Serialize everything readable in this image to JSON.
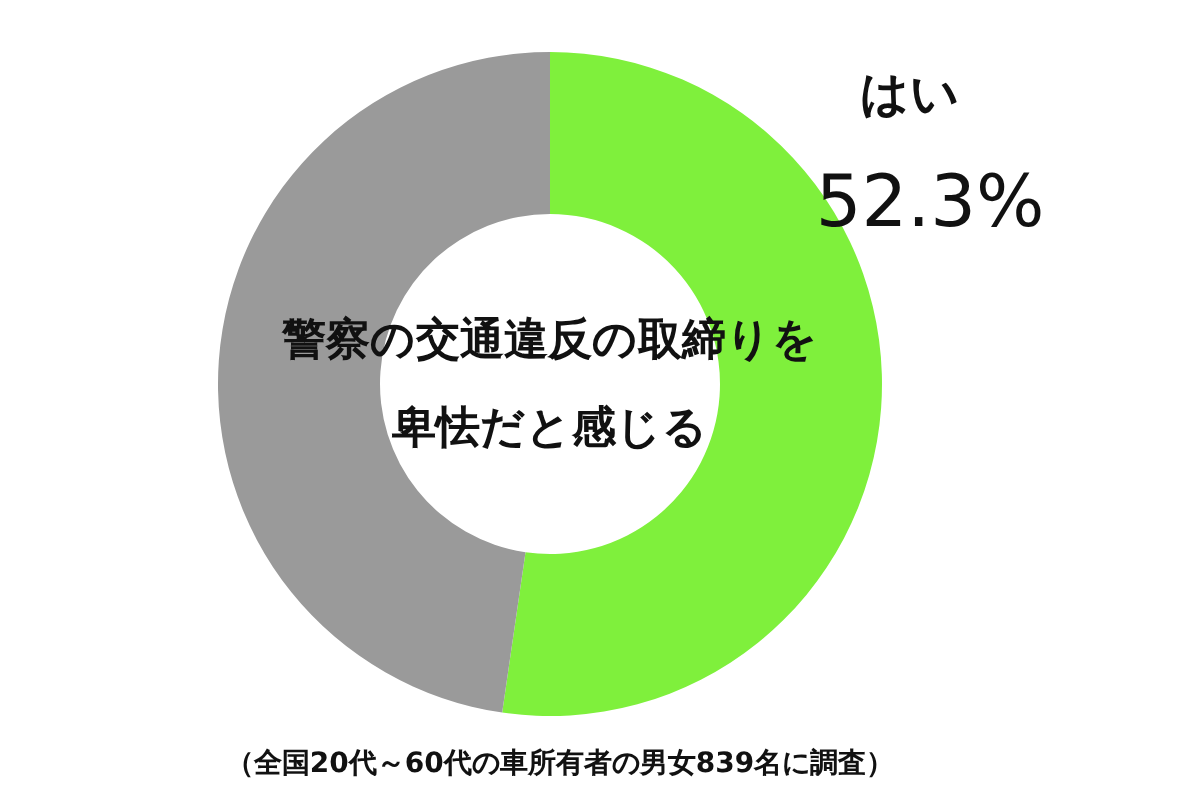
{
  "chart_data": {
    "type": "donut",
    "title": "警察の交通違反の取締りを卑怯だと感じる",
    "categories": [
      "はい",
      null
    ],
    "values": [
      52.3,
      47.7
    ],
    "colors": [
      "#7ff03c",
      "#9a9a9a"
    ],
    "value_labels": [
      "52.3%",
      null
    ],
    "annotations": [
      "（全国20代～60代の車所有者の男女839名に調査）"
    ]
  }
}
